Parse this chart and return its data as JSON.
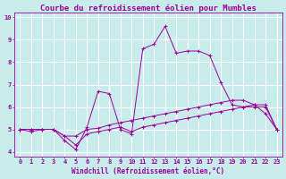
{
  "title": "Courbe du refroidissement éolien pour Mumbles",
  "xlabel": "Windchill (Refroidissement éolien,°C)",
  "background_color": "#c8ecec",
  "grid_color": "#ffffff",
  "line_color": "#990099",
  "xlim": [
    -0.5,
    23.5
  ],
  "ylim": [
    3.8,
    10.2
  ],
  "yticks": [
    4,
    5,
    6,
    7,
    8,
    9,
    10
  ],
  "xticks": [
    0,
    1,
    2,
    3,
    4,
    5,
    6,
    7,
    8,
    9,
    10,
    11,
    12,
    13,
    14,
    15,
    16,
    17,
    18,
    19,
    20,
    21,
    22,
    23
  ],
  "series1_x": [
    0,
    1,
    2,
    3,
    4,
    5,
    6,
    7,
    8,
    9,
    10,
    11,
    12,
    13,
    14,
    15,
    16,
    17,
    18,
    19,
    20,
    21,
    22,
    23
  ],
  "series1_y": [
    5.0,
    4.9,
    5.0,
    5.0,
    4.5,
    4.1,
    5.1,
    6.7,
    6.6,
    5.0,
    4.8,
    8.6,
    8.8,
    9.6,
    8.4,
    8.5,
    8.5,
    8.3,
    7.1,
    6.1,
    6.0,
    6.1,
    5.7,
    5.0
  ],
  "series2_x": [
    0,
    1,
    2,
    3,
    4,
    5,
    6,
    7,
    8,
    9,
    10,
    11,
    12,
    13,
    14,
    15,
    16,
    17,
    18,
    19,
    20,
    21,
    22,
    23
  ],
  "series2_y": [
    5.0,
    5.0,
    5.0,
    5.0,
    4.7,
    4.7,
    5.0,
    5.05,
    5.2,
    5.3,
    5.4,
    5.5,
    5.6,
    5.7,
    5.8,
    5.9,
    6.0,
    6.1,
    6.2,
    6.3,
    6.3,
    6.1,
    6.1,
    5.0
  ],
  "series3_x": [
    0,
    1,
    2,
    3,
    4,
    5,
    6,
    7,
    8,
    9,
    10,
    11,
    12,
    13,
    14,
    15,
    16,
    17,
    18,
    19,
    20,
    21,
    22,
    23
  ],
  "series3_y": [
    5.0,
    5.0,
    5.0,
    5.0,
    4.7,
    4.3,
    4.8,
    4.9,
    5.0,
    5.1,
    4.9,
    5.1,
    5.2,
    5.3,
    5.4,
    5.5,
    5.6,
    5.7,
    5.8,
    5.9,
    6.0,
    6.0,
    6.0,
    5.0
  ],
  "title_fontsize": 6.5,
  "axis_fontsize": 5.5,
  "tick_fontsize": 5.0
}
